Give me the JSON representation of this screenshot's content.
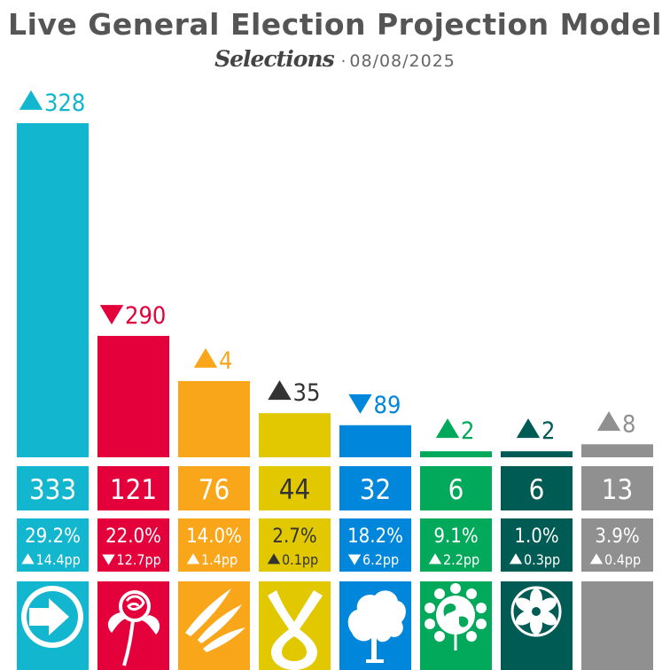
{
  "title": "Live General Election Projection Model",
  "brand": "Selections",
  "separator": "·",
  "date": "08/08/2025",
  "chart_data": {
    "type": "bar",
    "ylim": [
      0,
      333
    ],
    "parties": [
      {
        "color": "#12B6CF",
        "seats": 333,
        "seat_change": 328,
        "seat_dir": "up",
        "vote_share": "29.2%",
        "vote_change": "14.4pp",
        "vote_dir": "up",
        "seat_text": "#ffffff",
        "logo": "arrow-icon"
      },
      {
        "color": "#E4003B",
        "seats": 121,
        "seat_change": 290,
        "seat_dir": "down",
        "vote_share": "22.0%",
        "vote_change": "12.7pp",
        "vote_dir": "down",
        "seat_text": "#ffffff",
        "logo": "rose-icon"
      },
      {
        "color": "#FAA61A",
        "seats": 76,
        "seat_change": 4,
        "seat_dir": "up",
        "vote_share": "14.0%",
        "vote_change": "1.4pp",
        "vote_dir": "up",
        "seat_text": "#ffffff",
        "logo": "bird-icon"
      },
      {
        "color": "#E1C800",
        "seats": 44,
        "seat_change": 35,
        "seat_dir": "up",
        "vote_share": "2.7%",
        "vote_change": "0.1pp",
        "vote_dir": "up",
        "seat_text": "#333333",
        "logo": "saltire-icon"
      },
      {
        "color": "#0087DC",
        "seats": 32,
        "seat_change": 89,
        "seat_dir": "down",
        "vote_share": "18.2%",
        "vote_change": "6.2pp",
        "vote_dir": "down",
        "seat_text": "#ffffff",
        "logo": "tree-icon"
      },
      {
        "color": "#02A95B",
        "seats": 6,
        "seat_change": 2,
        "seat_dir": "up",
        "vote_share": "9.1%",
        "vote_change": "2.2pp",
        "vote_dir": "up",
        "seat_text": "#ffffff",
        "logo": "globe-icon"
      },
      {
        "color": "#005B54",
        "seats": 6,
        "seat_change": 2,
        "seat_dir": "up",
        "vote_share": "1.0%",
        "vote_change": "0.3pp",
        "vote_dir": "up",
        "seat_text": "#ffffff",
        "logo": "triskele-icon"
      },
      {
        "color": "#909090",
        "seats": 13,
        "seat_change": 8,
        "seat_dir": "up",
        "vote_share": "3.9%",
        "vote_change": "0.4pp",
        "vote_dir": "up",
        "seat_text": "#ffffff",
        "logo": "blank-icon"
      }
    ]
  }
}
